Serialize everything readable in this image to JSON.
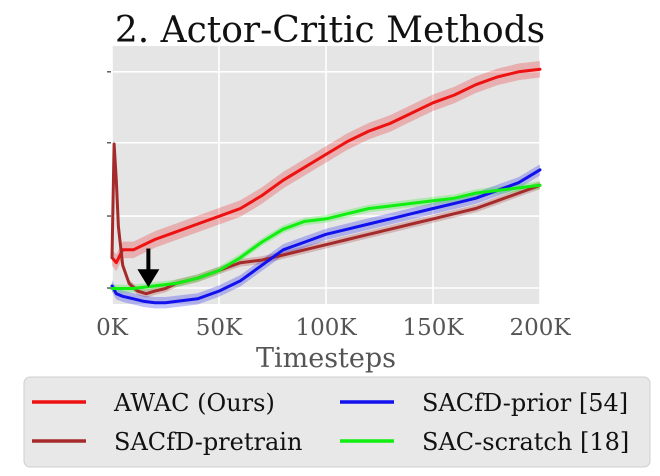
{
  "chart_data": {
    "type": "line",
    "title": "2. Actor-Critic Methods",
    "xlabel": "Timesteps",
    "ylabel": "",
    "xlim": [
      0,
      200000
    ],
    "ylim": [
      0,
      1
    ],
    "x_ticks": [
      0,
      50000,
      100000,
      150000,
      200000
    ],
    "x_tick_labels": [
      "0K",
      "50K",
      "100K",
      "150K",
      "200K"
    ],
    "y_ticks": [
      0.062,
      0.341,
      0.625,
      0.9
    ],
    "grid": true,
    "background": "#e5e5e5",
    "legend": {
      "location": "bottom",
      "columns": 2
    },
    "annotation": {
      "type": "arrow-down",
      "x": 17000,
      "y_from": 0.215,
      "y_to": 0.065
    },
    "series": [
      {
        "name": "AWAC (Ours)",
        "color": "#ee1111",
        "band": 0.032,
        "x": [
          0,
          2000,
          5000,
          10000,
          20000,
          30000,
          40000,
          50000,
          60000,
          70000,
          80000,
          90000,
          100000,
          110000,
          120000,
          130000,
          140000,
          150000,
          160000,
          170000,
          180000,
          190000,
          200000
        ],
        "y": [
          0.18,
          0.16,
          0.21,
          0.21,
          0.25,
          0.28,
          0.31,
          0.34,
          0.37,
          0.42,
          0.48,
          0.53,
          0.58,
          0.63,
          0.67,
          0.7,
          0.74,
          0.78,
          0.81,
          0.85,
          0.88,
          0.9,
          0.91
        ]
      },
      {
        "name": "SACfD-pretrain",
        "color": "#a52a2a",
        "band": 0.015,
        "x": [
          0,
          1000,
          2000,
          3000,
          5000,
          8000,
          12000,
          16000,
          20000,
          25000,
          30000,
          40000,
          50000,
          60000,
          70000,
          80000,
          90000,
          100000,
          110000,
          120000,
          130000,
          140000,
          150000,
          160000,
          170000,
          180000,
          190000,
          200000
        ],
        "y": [
          0.18,
          0.62,
          0.48,
          0.3,
          0.15,
          0.08,
          0.05,
          0.04,
          0.05,
          0.06,
          0.08,
          0.1,
          0.13,
          0.16,
          0.17,
          0.19,
          0.21,
          0.23,
          0.25,
          0.27,
          0.29,
          0.31,
          0.33,
          0.35,
          0.37,
          0.4,
          0.43,
          0.46
        ]
      },
      {
        "name": "SACfD-prior [54]",
        "color": "#1111ee",
        "band": 0.022,
        "x": [
          0,
          2000,
          5000,
          10000,
          15000,
          20000,
          25000,
          30000,
          40000,
          50000,
          60000,
          70000,
          80000,
          90000,
          100000,
          110000,
          120000,
          130000,
          140000,
          150000,
          160000,
          170000,
          180000,
          190000,
          200000
        ],
        "y": [
          0.07,
          0.04,
          0.03,
          0.02,
          0.01,
          0.005,
          0.005,
          0.01,
          0.02,
          0.05,
          0.09,
          0.15,
          0.21,
          0.24,
          0.27,
          0.29,
          0.31,
          0.33,
          0.35,
          0.37,
          0.39,
          0.41,
          0.44,
          0.47,
          0.52
        ]
      },
      {
        "name": "SAC-scratch [18]",
        "color": "#11ee11",
        "band": 0.015,
        "x": [
          0,
          5000,
          10000,
          20000,
          30000,
          40000,
          50000,
          60000,
          70000,
          80000,
          90000,
          100000,
          110000,
          120000,
          130000,
          140000,
          150000,
          160000,
          170000,
          180000,
          190000,
          200000
        ],
        "y": [
          0.06,
          0.06,
          0.06,
          0.07,
          0.08,
          0.1,
          0.13,
          0.18,
          0.24,
          0.29,
          0.32,
          0.33,
          0.35,
          0.37,
          0.38,
          0.39,
          0.4,
          0.41,
          0.43,
          0.44,
          0.45,
          0.46
        ]
      }
    ]
  }
}
